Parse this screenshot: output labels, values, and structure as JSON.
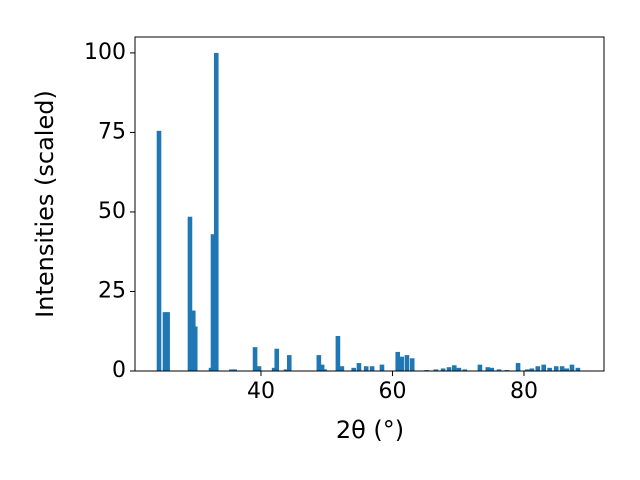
{
  "chart_data": {
    "type": "bar",
    "x_label": "2θ (°)",
    "y_label": "Intensities (scaled)",
    "x": [
      24.49,
      25.4,
      25.8,
      29.2,
      29.7,
      30.0,
      32.4,
      32.7,
      33.2,
      35.5,
      36.0,
      39.1,
      39.7,
      42.0,
      42.4,
      43.8,
      44.3,
      48.8,
      49.3,
      49.7,
      51.7,
      52.3,
      54.1,
      54.9,
      56.0,
      56.9,
      58.4,
      60.8,
      61.4,
      62.2,
      63.0,
      65.2,
      66.6,
      67.7,
      68.6,
      69.4,
      70.1,
      71.0,
      73.3,
      74.5,
      75.1,
      76.2,
      77.4,
      79.1,
      80.5,
      81.2,
      82.1,
      83.0,
      83.9,
      84.9,
      85.8,
      86.5,
      87.3,
      88.2
    ],
    "values": [
      75.5,
      18.5,
      18.5,
      48.5,
      19,
      14,
      1,
      43,
      100,
      0.5,
      0.5,
      7.5,
      1.5,
      1,
      7,
      0.5,
      5,
      5,
      2,
      0.5,
      11,
      1.5,
      1,
      2.5,
      1.5,
      1.5,
      2,
      6,
      4.5,
      5,
      4,
      0.3,
      0.5,
      0.8,
      1.2,
      1.8,
      1,
      0.5,
      2,
      1.2,
      1,
      0.5,
      0.3,
      2.5,
      0.5,
      0.8,
      1.5,
      2,
      1,
      1.5,
      1.5,
      0.8,
      2,
      1
    ],
    "color": "#1f77b4",
    "xlim": [
      20.84,
      92.17
    ],
    "xticks": [
      40,
      60,
      80
    ],
    "ylim": [
      0,
      105
    ],
    "yticks": [
      0,
      25,
      50,
      75,
      100
    ]
  }
}
